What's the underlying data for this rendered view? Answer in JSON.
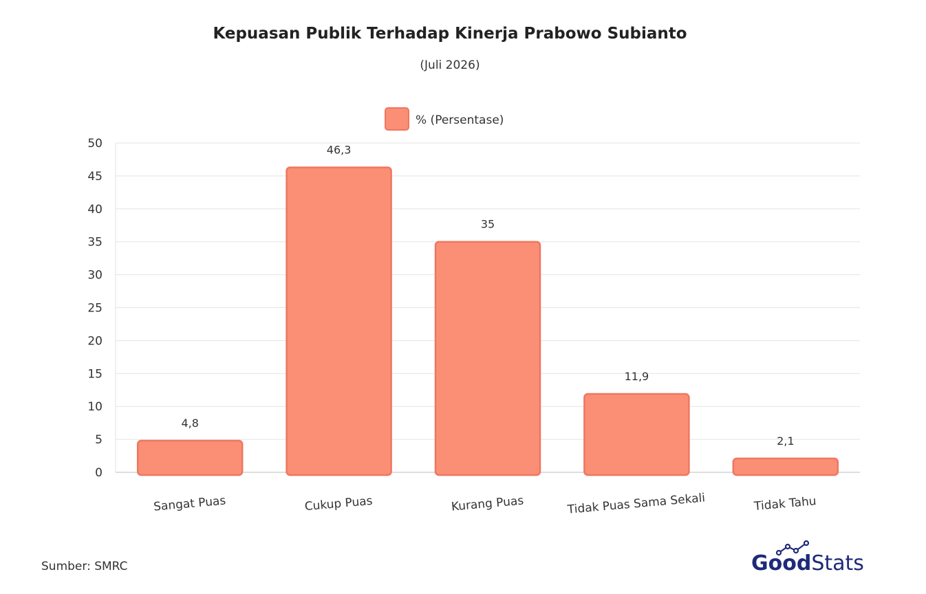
{
  "source": "Sumber: SMRC",
  "logo": {
    "part1": "Good",
    "part2": "Stats",
    "color": "#1e2a78"
  },
  "colors": {
    "bar_fill": "#fa8f75",
    "bar_stroke": "#ee7760",
    "grid": "#e3e3e3",
    "axis": "#bdbdbd"
  },
  "chart_data": {
    "type": "bar",
    "title": "Kepuasan Publik Terhadap Kinerja Prabowo Subianto",
    "subtitle": "(Juli 2026)",
    "legend": {
      "position": "top",
      "entries": [
        "% (Persentase)"
      ]
    },
    "categories": [
      "Sangat Puas",
      "Cukup Puas",
      "Kurang Puas",
      "Tidak Puas Sama Sekali",
      "Tidak Tahu"
    ],
    "series": [
      {
        "name": "% (Persentase)",
        "values": [
          4.8,
          46.3,
          35,
          11.9,
          2.1
        ]
      }
    ],
    "data_labels": [
      "4,8",
      "46,3",
      "35",
      "11,9",
      "2,1"
    ],
    "xlabel": "",
    "ylabel": "",
    "ylim": [
      0,
      50
    ],
    "yticks": [
      0,
      5,
      10,
      15,
      20,
      25,
      30,
      35,
      40,
      45,
      50
    ],
    "grid": true
  }
}
